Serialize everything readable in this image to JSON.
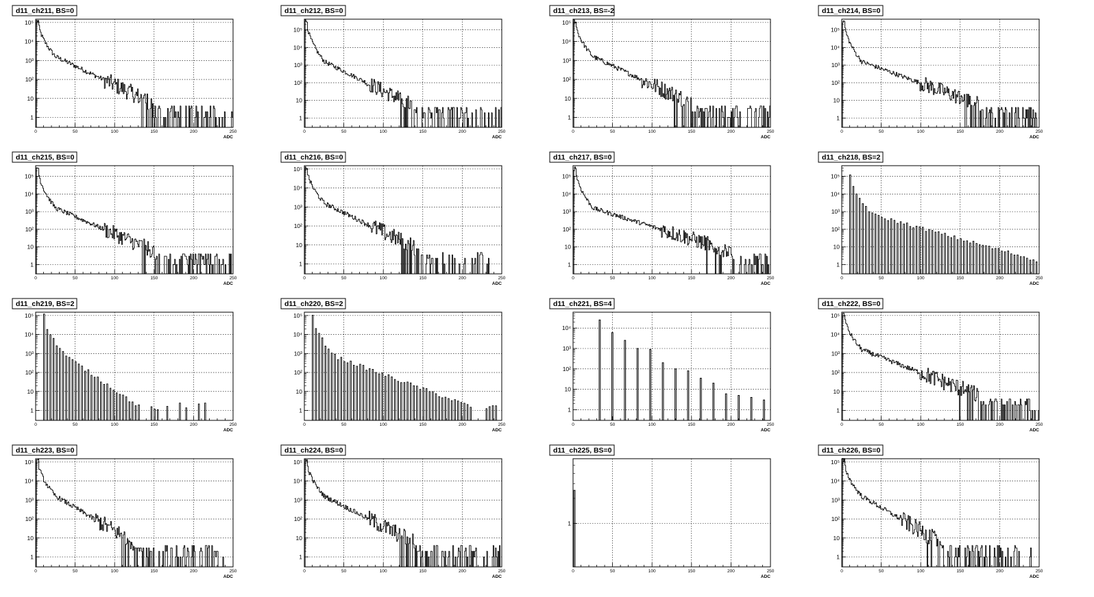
{
  "page": {
    "columns": 4,
    "rows": 4
  },
  "chart_data": [
    {
      "title": "d11_ch211, BS=0",
      "type": "histogram",
      "xlabel": "ADC",
      "xlim": [
        0,
        250
      ],
      "log_y": true,
      "ylim": [
        0.3,
        150000
      ],
      "pattern": "smooth",
      "peak": 120000,
      "decay_end": 148,
      "tail_end": 250
    },
    {
      "title": "d11_ch212, BS=0",
      "type": "histogram",
      "xlabel": "ADC",
      "xlim": [
        0,
        250
      ],
      "log_y": true,
      "ylim": [
        0.3,
        400000
      ],
      "pattern": "smooth",
      "peak": 300000,
      "decay_end": 135,
      "tail_end": 250
    },
    {
      "title": "d11_ch213, BS=-2",
      "type": "histogram",
      "xlabel": "ADC",
      "xlim": [
        0,
        250
      ],
      "log_y": true,
      "ylim": [
        0.3,
        150000
      ],
      "pattern": "smooth",
      "peak": 120000,
      "decay_end": 150,
      "tail_end": 250
    },
    {
      "title": "d11_ch214, BS=0",
      "type": "histogram",
      "xlabel": "ADC",
      "xlim": [
        0,
        250
      ],
      "log_y": true,
      "ylim": [
        0.3,
        400000
      ],
      "pattern": "smooth",
      "peak": 300000,
      "decay_end": 175,
      "tail_end": 250
    },
    {
      "title": "d11_ch215, BS=0",
      "type": "histogram",
      "xlabel": "ADC",
      "xlim": [
        0,
        250
      ],
      "log_y": true,
      "ylim": [
        0.3,
        400000
      ],
      "pattern": "smooth",
      "peak": 300000,
      "decay_end": 150,
      "tail_end": 250
    },
    {
      "title": "d11_ch216, BS=0",
      "type": "histogram",
      "xlabel": "ADC",
      "xlim": [
        0,
        250
      ],
      "log_y": true,
      "ylim": [
        0.3,
        150000
      ],
      "pattern": "smooth",
      "peak": 120000,
      "decay_end": 145,
      "tail_end": 235
    },
    {
      "title": "d11_ch217, BS=0",
      "type": "histogram",
      "xlabel": "ADC",
      "xlim": [
        0,
        250
      ],
      "log_y": true,
      "ylim": [
        0.3,
        400000
      ],
      "pattern": "smooth",
      "peak": 300000,
      "decay_end": 200,
      "tail_end": 250
    },
    {
      "title": "d11_ch218, BS=2",
      "type": "histogram",
      "xlabel": "ADC",
      "xlim": [
        0,
        250
      ],
      "log_y": true,
      "ylim": [
        0.3,
        400000
      ],
      "pattern": "comb",
      "peak": 100000,
      "step": 4,
      "start": 10,
      "decay_end": 250,
      "tail_end": 250
    },
    {
      "title": "d11_ch219, BS=2",
      "type": "histogram",
      "xlabel": "ADC",
      "xlim": [
        0,
        250
      ],
      "log_y": true,
      "ylim": [
        0.3,
        150000
      ],
      "pattern": "comb",
      "peak": 100000,
      "step": 4,
      "start": 10,
      "decay_end": 130,
      "tail_end": 215
    },
    {
      "title": "d11_ch220, BS=2",
      "type": "histogram",
      "xlabel": "ADC",
      "xlim": [
        0,
        250
      ],
      "log_y": true,
      "ylim": [
        0.3,
        150000
      ],
      "pattern": "comb",
      "peak": 100000,
      "step": 4,
      "start": 10,
      "decay_end": 210,
      "tail_end": 245
    },
    {
      "title": "d11_ch221, BS=4",
      "type": "histogram",
      "xlabel": "ADC",
      "xlim": [
        0,
        250
      ],
      "log_y": true,
      "ylim": [
        0.3,
        60000
      ],
      "pattern": "sparse",
      "peaks": [
        [
          33,
          25000
        ],
        [
          49,
          6000
        ],
        [
          65,
          2500
        ],
        [
          81,
          1000
        ],
        [
          97,
          900
        ],
        [
          113,
          200
        ],
        [
          129,
          100
        ],
        [
          145,
          80
        ],
        [
          161,
          35
        ],
        [
          177,
          20
        ],
        [
          193,
          6
        ],
        [
          209,
          5
        ],
        [
          225,
          4
        ],
        [
          241,
          3
        ]
      ]
    },
    {
      "title": "d11_ch222, BS=0",
      "type": "histogram",
      "xlabel": "ADC",
      "xlim": [
        0,
        250
      ],
      "log_y": true,
      "ylim": [
        0.3,
        150000
      ],
      "pattern": "smooth",
      "peak": 120000,
      "decay_end": 175,
      "tail_end": 250
    },
    {
      "title": "d11_ch223, BS=0",
      "type": "histogram",
      "xlabel": "ADC",
      "xlim": [
        0,
        250
      ],
      "log_y": true,
      "ylim": [
        0.3,
        150000
      ],
      "pattern": "smooth",
      "peak": 120000,
      "decay_end": 125,
      "tail_end": 240
    },
    {
      "title": "d11_ch224, BS=0",
      "type": "histogram",
      "xlabel": "ADC",
      "xlim": [
        0,
        250
      ],
      "log_y": true,
      "ylim": [
        0.3,
        150000
      ],
      "pattern": "smooth",
      "peak": 120000,
      "decay_end": 140,
      "tail_end": 250
    },
    {
      "title": "d11_ch225, BS=0",
      "type": "histogram",
      "xlabel": "ADC",
      "xlim": [
        0,
        250
      ],
      "log_y": true,
      "ylim": [
        0.3,
        6
      ],
      "pattern": "single",
      "peaks": [
        [
          1,
          2.5
        ]
      ]
    },
    {
      "title": "d11_ch226, BS=0",
      "type": "histogram",
      "xlabel": "ADC",
      "xlim": [
        0,
        250
      ],
      "log_y": true,
      "ylim": [
        0.3,
        150000
      ],
      "pattern": "smooth",
      "peak": 120000,
      "decay_end": 125,
      "tail_end": 240
    }
  ],
  "axis": {
    "x_ticks": [
      "0",
      "50",
      "100",
      "150",
      "200",
      "250"
    ],
    "y_labels": [
      "1",
      "10",
      "10²",
      "10³",
      "10⁴",
      "10⁵"
    ]
  }
}
